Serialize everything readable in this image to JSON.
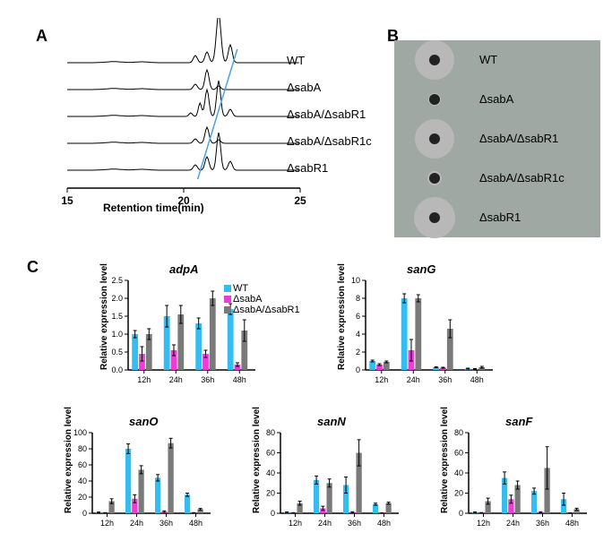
{
  "panelA": {
    "label": "A",
    "x_axis_title": "Retention time(min)",
    "x_ticks": [
      15,
      20,
      25
    ],
    "traces": [
      "WT",
      "ΔsabA",
      "ΔsabA/ΔsabR1",
      "ΔsabA/ΔsabR1c",
      "ΔsabR1"
    ],
    "marker_line_color": "#4aa3df"
  },
  "panelB": {
    "label": "B",
    "rows": [
      {
        "label": "WT",
        "outer_d": 44,
        "inner_d": 12
      },
      {
        "label": "ΔsabA",
        "outer_d": 14,
        "inner_d": 12
      },
      {
        "label": "ΔsabA/ΔsabR1",
        "outer_d": 44,
        "inner_d": 12
      },
      {
        "label": "ΔsabA/ΔsabR1c",
        "outer_d": 16,
        "inner_d": 12
      },
      {
        "label": "ΔsabR1",
        "outer_d": 46,
        "inner_d": 12
      }
    ],
    "plate_bg": "#9fa8a3"
  },
  "panelC": {
    "label": "C",
    "legend": [
      {
        "name": "WT",
        "color": "#35bdf2"
      },
      {
        "name": "ΔsabA",
        "color": "#f23bd4"
      },
      {
        "name": "ΔsabA/ΔsabR1",
        "color": "#7a7a7a"
      }
    ],
    "y_title": "Relative expression level",
    "charts": [
      {
        "title": "adpA",
        "timepoints": [
          "12h",
          "24h",
          "36h",
          "48h"
        ],
        "ymax": 2.5,
        "ystep": 0.5,
        "series": {
          "WT": [
            1.0,
            1.5,
            1.3,
            1.7
          ],
          "dsabA": [
            0.45,
            0.55,
            0.45,
            0.15
          ],
          "double": [
            1.0,
            1.55,
            2.0,
            1.1
          ]
        },
        "errors": {
          "WT": [
            0.1,
            0.3,
            0.15,
            0.15
          ],
          "dsabA": [
            0.2,
            0.15,
            0.1,
            0.05
          ],
          "double": [
            0.15,
            0.25,
            0.2,
            0.3
          ]
        }
      },
      {
        "title": "sanG",
        "timepoints": [
          "12h",
          "24h",
          "36h",
          "48h"
        ],
        "ymax": 10,
        "ystep": 2,
        "series": {
          "WT": [
            1.0,
            8.0,
            0.3,
            0.15
          ],
          "dsabA": [
            0.6,
            2.2,
            0.25,
            0.1
          ],
          "double": [
            0.9,
            8.0,
            4.6,
            0.3
          ]
        },
        "errors": {
          "WT": [
            0.1,
            0.5,
            0.05,
            0.05
          ],
          "dsabA": [
            0.1,
            1.2,
            0.05,
            0.05
          ],
          "double": [
            0.1,
            0.4,
            1.0,
            0.1
          ]
        }
      },
      {
        "title": "sanO",
        "timepoints": [
          "12h",
          "24h",
          "36h",
          "48h"
        ],
        "ymax": 100,
        "ystep": 20,
        "series": {
          "WT": [
            1,
            80,
            44,
            23
          ],
          "dsabA": [
            0.5,
            18,
            2,
            0.5
          ],
          "double": [
            15,
            54,
            87,
            5
          ]
        },
        "errors": {
          "WT": [
            0.5,
            6,
            4,
            2
          ],
          "dsabA": [
            0.3,
            5,
            1,
            0.3
          ],
          "double": [
            3,
            5,
            6,
            1
          ]
        }
      },
      {
        "title": "sanN",
        "timepoints": [
          "12h",
          "24h",
          "36h",
          "48h"
        ],
        "ymax": 80,
        "ystep": 20,
        "series": {
          "WT": [
            1,
            33,
            28,
            9
          ],
          "dsabA": [
            0.4,
            5,
            1,
            0.3
          ],
          "double": [
            10,
            30,
            60,
            10
          ]
        },
        "errors": {
          "WT": [
            0.3,
            4,
            8,
            1
          ],
          "dsabA": [
            0.2,
            2,
            0.5,
            0.2
          ],
          "double": [
            2,
            4,
            13,
            1
          ]
        }
      },
      {
        "title": "sanF",
        "timepoints": [
          "12h",
          "24h",
          "36h",
          "48h"
        ],
        "ymax": 80,
        "ystep": 20,
        "series": {
          "WT": [
            1,
            35,
            22,
            14
          ],
          "dsabA": [
            0.5,
            14,
            1,
            0.3
          ],
          "double": [
            12,
            28,
            45,
            4
          ]
        },
        "errors": {
          "WT": [
            0.3,
            6,
            3,
            6
          ],
          "dsabA": [
            0.2,
            4,
            0.5,
            0.2
          ],
          "double": [
            3,
            4,
            21,
            1
          ]
        }
      }
    ]
  }
}
